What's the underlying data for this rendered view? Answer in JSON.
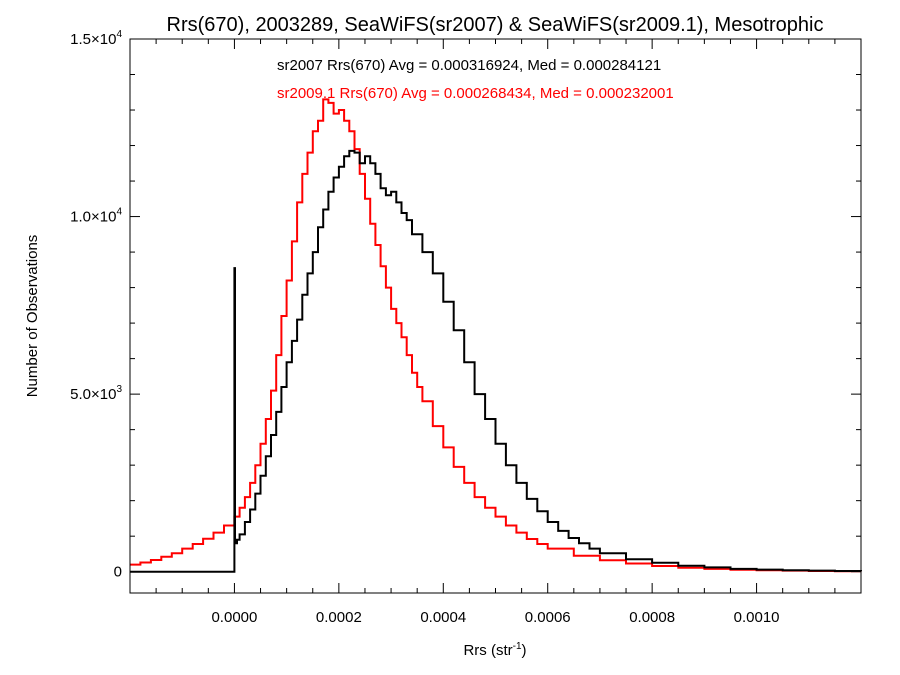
{
  "chart_data": {
    "type": "line",
    "title": "Rrs(670), 2003289, SeaWiFS(sr2007) & SeaWiFS(sr2009.1), Mesotrophic",
    "xlabel": "Rrs (str",
    "xlabel_sup": "-1",
    "xlabel_close": ")",
    "ylabel": "Number of Observations",
    "xlim": [
      -0.0002,
      0.0012
    ],
    "ylim": [
      -600,
      15000
    ],
    "x_ticks": [
      {
        "value": 0.0,
        "label": "0.0000"
      },
      {
        "value": 0.0002,
        "label": "0.0002"
      },
      {
        "value": 0.0004,
        "label": "0.0004"
      },
      {
        "value": 0.0006,
        "label": "0.0006"
      },
      {
        "value": 0.0008,
        "label": "0.0008"
      },
      {
        "value": 0.001,
        "label": "0.0010"
      }
    ],
    "y_ticks": [
      {
        "value": 0,
        "label": "0",
        "sup": ""
      },
      {
        "value": 5000,
        "label": "5.0×10",
        "sup": "3"
      },
      {
        "value": 10000,
        "label": "1.0×10",
        "sup": "4"
      },
      {
        "value": 15000,
        "label": "1.5×10",
        "sup": "4"
      }
    ],
    "grid": false,
    "annotations": [
      {
        "text": "sr2007 Rrs(670) Avg = 0.000316924, Med = 0.000284121",
        "color": "#000000"
      },
      {
        "text": "sr2009.1 Rrs(670) Avg = 0.000268434, Med = 0.000232001",
        "color": "#ff0000"
      }
    ],
    "series": [
      {
        "color": "#000000",
        "x": [
          -0.0002,
          -1e-05,
          -5e-06,
          0.0,
          1e-06,
          5e-06,
          1e-05,
          2e-05,
          3e-05,
          4e-05,
          5e-05,
          6e-05,
          7e-05,
          8e-05,
          9e-05,
          0.0001,
          0.00011,
          0.00012,
          0.00013,
          0.00014,
          0.00015,
          0.00016,
          0.00017,
          0.00018,
          0.00019,
          0.0002,
          0.00021,
          0.00022,
          0.00023,
          0.00024,
          0.00025,
          0.00026,
          0.00027,
          0.00028,
          0.00029,
          0.0003,
          0.00031,
          0.00032,
          0.00033,
          0.00034,
          0.00036,
          0.00038,
          0.0004,
          0.00042,
          0.00044,
          0.00046,
          0.00048,
          0.0005,
          0.00052,
          0.00054,
          0.00056,
          0.00058,
          0.0006,
          0.00062,
          0.00064,
          0.00066,
          0.00068,
          0.0007,
          0.00075,
          0.0008,
          0.00085,
          0.0009,
          0.00095,
          0.001,
          0.00105,
          0.0011,
          0.00115,
          0.0012
        ],
        "y": [
          0,
          0,
          0,
          8550,
          800,
          900,
          1050,
          1400,
          1750,
          2200,
          2700,
          3250,
          3850,
          4500,
          5200,
          5900,
          6500,
          7100,
          7800,
          8400,
          9000,
          9700,
          10200,
          10700,
          11100,
          11400,
          11700,
          11850,
          11800,
          11500,
          11700,
          11500,
          11200,
          10800,
          10600,
          10700,
          10400,
          10100,
          9900,
          9500,
          9000,
          8400,
          7600,
          6800,
          5900,
          5000,
          4300,
          3600,
          3000,
          2500,
          2050,
          1700,
          1400,
          1150,
          950,
          800,
          650,
          520,
          350,
          250,
          170,
          120,
          80,
          60,
          40,
          30,
          20,
          15
        ]
      },
      {
        "color": "#ff0000",
        "x": [
          -0.0002,
          -0.00018,
          -0.00016,
          -0.00014,
          -0.00012,
          -0.0001,
          -8e-05,
          -6e-05,
          -4e-05,
          -2e-05,
          0.0,
          1e-05,
          2e-05,
          3e-05,
          4e-05,
          5e-05,
          6e-05,
          7e-05,
          8e-05,
          9e-05,
          0.0001,
          0.00011,
          0.00012,
          0.00013,
          0.00014,
          0.00015,
          0.00016,
          0.00017,
          0.00018,
          0.00019,
          0.0002,
          0.00021,
          0.00022,
          0.00023,
          0.00024,
          0.00025,
          0.00026,
          0.00027,
          0.00028,
          0.00029,
          0.0003,
          0.00031,
          0.00032,
          0.00033,
          0.00034,
          0.00035,
          0.00036,
          0.00038,
          0.0004,
          0.00042,
          0.00044,
          0.00046,
          0.00048,
          0.0005,
          0.00052,
          0.00054,
          0.00056,
          0.00058,
          0.0006,
          0.00065,
          0.0007,
          0.00075,
          0.0008,
          0.00085,
          0.0009,
          0.00095,
          0.001,
          0.00105,
          0.0011,
          0.00115,
          0.0012
        ],
        "y": [
          200,
          260,
          330,
          420,
          520,
          650,
          780,
          930,
          1100,
          1300,
          1550,
          1800,
          2100,
          2500,
          3000,
          3600,
          4300,
          5100,
          6100,
          7200,
          8200,
          9300,
          10400,
          11200,
          11800,
          12400,
          12700,
          13300,
          13200,
          12900,
          13000,
          12700,
          12400,
          11900,
          11200,
          10500,
          9800,
          9200,
          8600,
          8000,
          7400,
          7000,
          6600,
          6100,
          5600,
          5200,
          4800,
          4100,
          3500,
          2950,
          2500,
          2100,
          1800,
          1550,
          1300,
          1100,
          920,
          780,
          650,
          450,
          320,
          230,
          160,
          110,
          80,
          55,
          40,
          30,
          20,
          15,
          10
        ]
      }
    ]
  }
}
